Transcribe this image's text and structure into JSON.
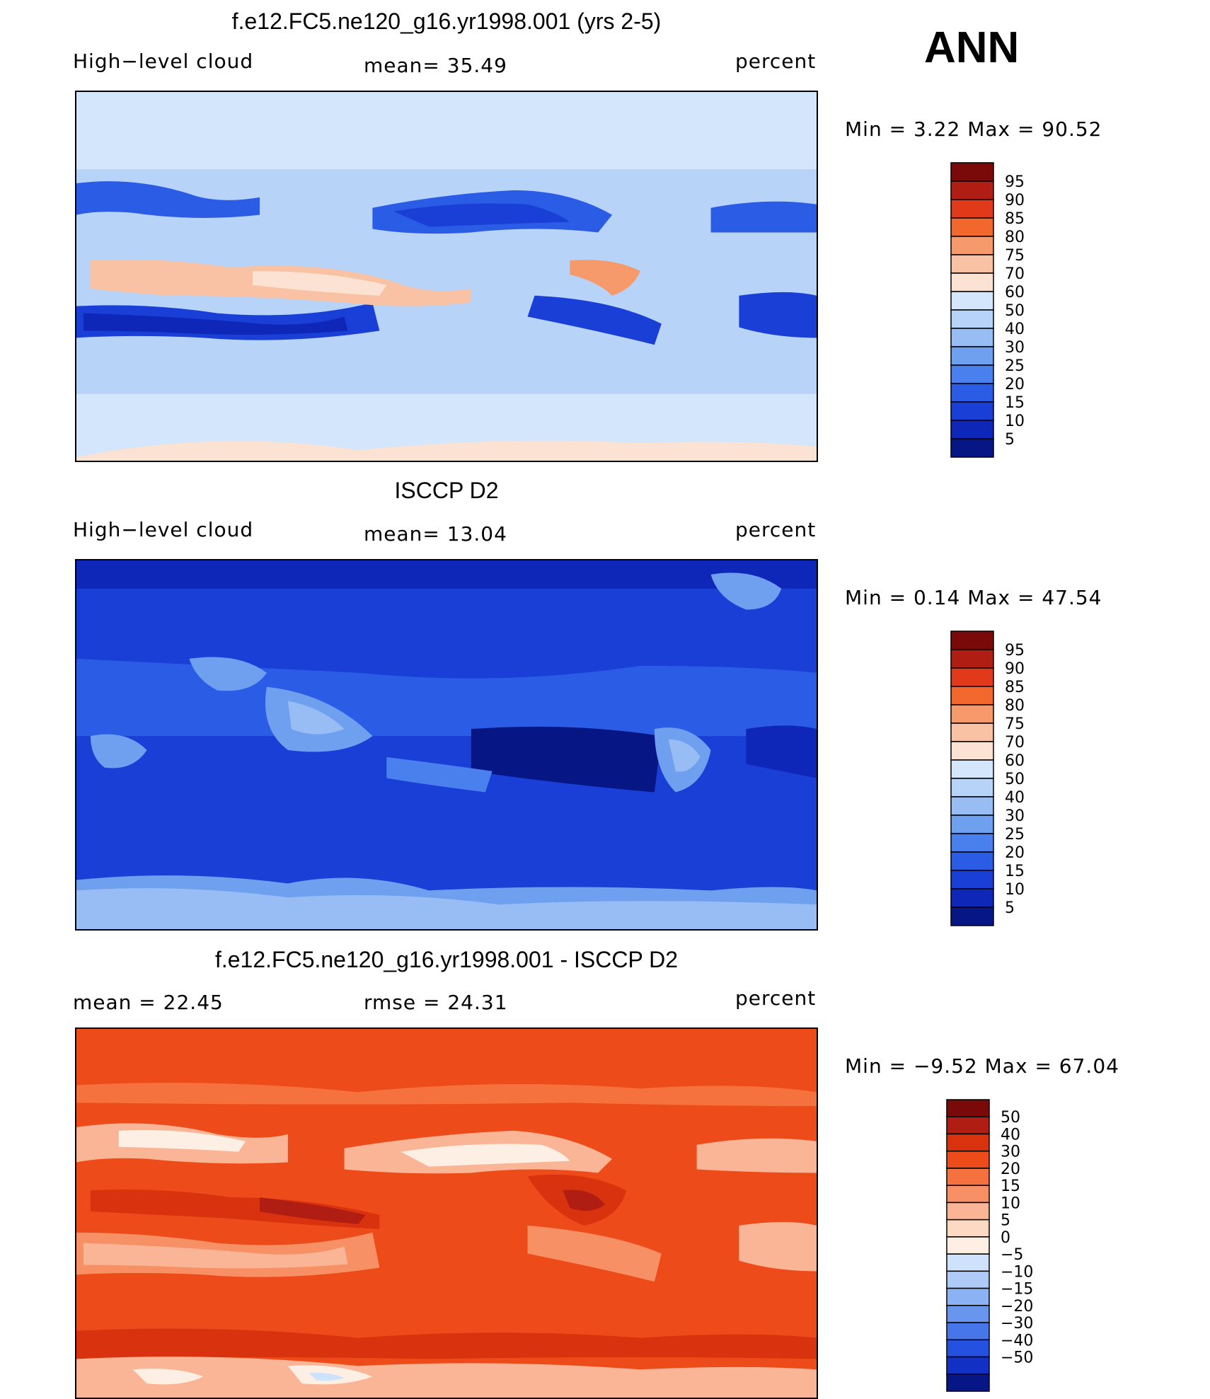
{
  "season": "ANN",
  "panels": [
    {
      "id": "model",
      "title": "f.e12.FC5.ne120_g16.yr1998.001 (yrs 2-5)",
      "left_label": "High−level cloud",
      "center_label": "mean=   35.49",
      "right_label": "percent",
      "minmax": "Min =    3.22  Max =   90.52",
      "palette": "model",
      "colorbar": {
        "colors": [
          "#7a0a0a",
          "#b01d12",
          "#e03a1a",
          "#f2682c",
          "#f79a6b",
          "#f9c2a4",
          "#fbe2d2",
          "#d3e6fb",
          "#b8d3f8",
          "#97bdf4",
          "#6fa0f0",
          "#4a7fee",
          "#2b5ce6",
          "#1a3fd6",
          "#0f27b8",
          "#071685"
        ],
        "labels": [
          "95",
          "90",
          "85",
          "80",
          "75",
          "70",
          "60",
          "50",
          "40",
          "30",
          "25",
          "20",
          "15",
          "10",
          "5"
        ]
      }
    },
    {
      "id": "obs",
      "title": "ISCCP D2",
      "left_label": "High−level cloud",
      "center_label": "mean=   13.04",
      "right_label": "percent",
      "minmax": "Min =    0.14  Max =   47.54",
      "palette": "obs",
      "colorbar": {
        "colors": [
          "#7a0a0a",
          "#b01d12",
          "#e03a1a",
          "#f2682c",
          "#f79a6b",
          "#f9c2a4",
          "#fbe2d2",
          "#d3e6fb",
          "#b8d3f8",
          "#97bdf4",
          "#6fa0f0",
          "#4a7fee",
          "#2b5ce6",
          "#1a3fd6",
          "#0f27b8",
          "#071685"
        ],
        "labels": [
          "95",
          "90",
          "85",
          "80",
          "75",
          "70",
          "60",
          "50",
          "40",
          "30",
          "25",
          "20",
          "15",
          "10",
          "5"
        ]
      }
    },
    {
      "id": "diff",
      "title": "f.e12.FC5.ne120_g16.yr1998.001 - ISCCP D2",
      "left_label": "mean =   22.45",
      "center_label": "rmse =   24.31",
      "right_label": "percent",
      "minmax": "Min =   −9.52  Max =   67.04",
      "palette": "diff",
      "colorbar": {
        "colors": [
          "#7a0a0a",
          "#b01d12",
          "#d8320f",
          "#ee4b1a",
          "#f5713d",
          "#f89066",
          "#fab596",
          "#fcd9c3",
          "#fdefe3",
          "#cfe2fb",
          "#aecbf7",
          "#8bb2f2",
          "#6895ee",
          "#4676ea",
          "#2451e0",
          "#1230c4",
          "#071685"
        ],
        "labels": [
          "50",
          "40",
          "30",
          "20",
          "15",
          "10",
          "5",
          "0",
          "−5",
          "−10",
          "−15",
          "−20",
          "−30",
          "−40",
          "−50"
        ]
      }
    }
  ]
}
